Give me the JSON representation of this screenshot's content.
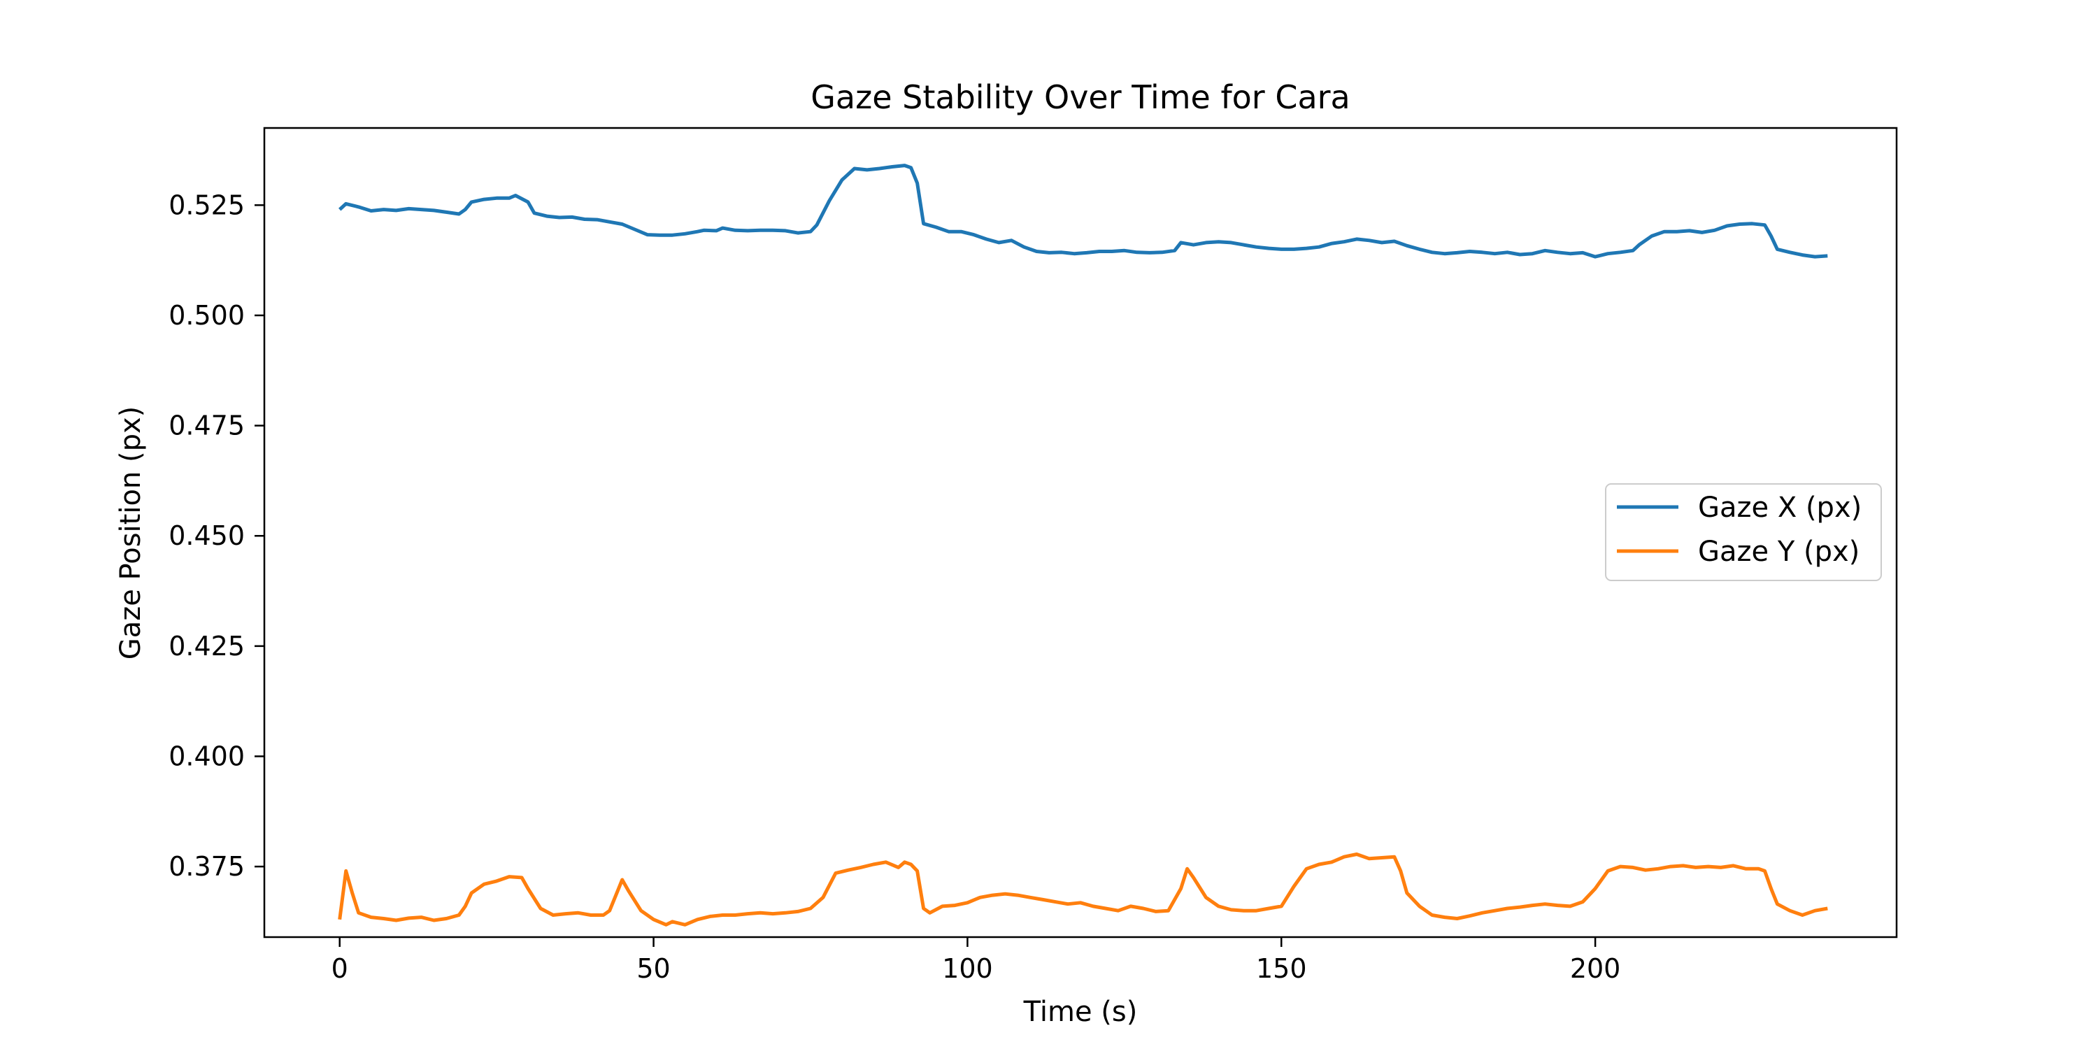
{
  "chart_data": {
    "type": "line",
    "title": "Gaze Stability Over Time for Cara",
    "xlabel": "Time (s)",
    "ylabel": "Gaze Position (px)",
    "xlim": [
      -12,
      248
    ],
    "ylim": [
      0.359,
      0.5425
    ],
    "xticks": [
      0,
      50,
      100,
      150,
      200
    ],
    "yticks": [
      0.375,
      0.4,
      0.425,
      0.45,
      0.475,
      0.5,
      0.525
    ],
    "ytick_labels": [
      "0.375",
      "0.400",
      "0.425",
      "0.450",
      "0.475",
      "0.500",
      "0.525"
    ],
    "grid": false,
    "legend_position": "center-right",
    "series": [
      {
        "name": "Gaze X (px)",
        "color": "#1f77b4",
        "points": [
          [
            0,
            0.524
          ],
          [
            1,
            0.5253
          ],
          [
            3,
            0.5246
          ],
          [
            5,
            0.5237
          ],
          [
            7,
            0.524
          ],
          [
            9,
            0.5238
          ],
          [
            11,
            0.5242
          ],
          [
            13,
            0.524
          ],
          [
            15,
            0.5238
          ],
          [
            17,
            0.5234
          ],
          [
            19,
            0.523
          ],
          [
            20,
            0.524
          ],
          [
            21,
            0.5257
          ],
          [
            23,
            0.5263
          ],
          [
            25,
            0.5266
          ],
          [
            27,
            0.5266
          ],
          [
            28,
            0.5272
          ],
          [
            30,
            0.5257
          ],
          [
            31,
            0.5232
          ],
          [
            33,
            0.5225
          ],
          [
            35,
            0.5222
          ],
          [
            37,
            0.5223
          ],
          [
            39,
            0.5218
          ],
          [
            41,
            0.5217
          ],
          [
            43,
            0.5212
          ],
          [
            45,
            0.5207
          ],
          [
            47,
            0.5195
          ],
          [
            49,
            0.5183
          ],
          [
            51,
            0.5182
          ],
          [
            53,
            0.5182
          ],
          [
            55,
            0.5185
          ],
          [
            57,
            0.519
          ],
          [
            58,
            0.5193
          ],
          [
            60,
            0.5192
          ],
          [
            61,
            0.5198
          ],
          [
            63,
            0.5193
          ],
          [
            65,
            0.5192
          ],
          [
            67,
            0.5193
          ],
          [
            69,
            0.5193
          ],
          [
            71,
            0.5192
          ],
          [
            73,
            0.5187
          ],
          [
            75,
            0.519
          ],
          [
            76,
            0.5205
          ],
          [
            78,
            0.526
          ],
          [
            80,
            0.5307
          ],
          [
            82,
            0.5333
          ],
          [
            84,
            0.533
          ],
          [
            86,
            0.5333
          ],
          [
            88,
            0.5337
          ],
          [
            90,
            0.534
          ],
          [
            91,
            0.5335
          ],
          [
            92,
            0.53
          ],
          [
            93,
            0.5208
          ],
          [
            95,
            0.52
          ],
          [
            97,
            0.519
          ],
          [
            99,
            0.519
          ],
          [
            101,
            0.5183
          ],
          [
            103,
            0.5173
          ],
          [
            105,
            0.5165
          ],
          [
            107,
            0.517
          ],
          [
            109,
            0.5155
          ],
          [
            111,
            0.5145
          ],
          [
            113,
            0.5142
          ],
          [
            115,
            0.5143
          ],
          [
            117,
            0.514
          ],
          [
            119,
            0.5142
          ],
          [
            121,
            0.5145
          ],
          [
            123,
            0.5145
          ],
          [
            125,
            0.5147
          ],
          [
            127,
            0.5143
          ],
          [
            129,
            0.5142
          ],
          [
            131,
            0.5143
          ],
          [
            133,
            0.5147
          ],
          [
            134,
            0.5165
          ],
          [
            136,
            0.516
          ],
          [
            138,
            0.5165
          ],
          [
            140,
            0.5167
          ],
          [
            142,
            0.5165
          ],
          [
            144,
            0.516
          ],
          [
            146,
            0.5155
          ],
          [
            148,
            0.5152
          ],
          [
            150,
            0.515
          ],
          [
            152,
            0.515
          ],
          [
            154,
            0.5152
          ],
          [
            156,
            0.5155
          ],
          [
            158,
            0.5163
          ],
          [
            160,
            0.5167
          ],
          [
            162,
            0.5173
          ],
          [
            164,
            0.517
          ],
          [
            166,
            0.5165
          ],
          [
            168,
            0.5168
          ],
          [
            170,
            0.5158
          ],
          [
            172,
            0.515
          ],
          [
            174,
            0.5143
          ],
          [
            176,
            0.514
          ],
          [
            178,
            0.5142
          ],
          [
            180,
            0.5145
          ],
          [
            182,
            0.5143
          ],
          [
            184,
            0.514
          ],
          [
            186,
            0.5143
          ],
          [
            188,
            0.5138
          ],
          [
            190,
            0.514
          ],
          [
            192,
            0.5147
          ],
          [
            194,
            0.5143
          ],
          [
            196,
            0.514
          ],
          [
            198,
            0.5142
          ],
          [
            200,
            0.5133
          ],
          [
            202,
            0.514
          ],
          [
            204,
            0.5143
          ],
          [
            206,
            0.5147
          ],
          [
            207,
            0.516
          ],
          [
            209,
            0.518
          ],
          [
            211,
            0.519
          ],
          [
            213,
            0.519
          ],
          [
            215,
            0.5192
          ],
          [
            217,
            0.5188
          ],
          [
            219,
            0.5193
          ],
          [
            221,
            0.5203
          ],
          [
            223,
            0.5207
          ],
          [
            225,
            0.5208
          ],
          [
            227,
            0.5205
          ],
          [
            228,
            0.518
          ],
          [
            229,
            0.515
          ],
          [
            231,
            0.5143
          ],
          [
            233,
            0.5137
          ],
          [
            235,
            0.5133
          ],
          [
            237,
            0.5135
          ]
        ]
      },
      {
        "name": "Gaze Y (px)",
        "color": "#ff7f0e",
        "points": [
          [
            0,
            0.363
          ],
          [
            1,
            0.374
          ],
          [
            2,
            0.369
          ],
          [
            3,
            0.3645
          ],
          [
            5,
            0.3635
          ],
          [
            7,
            0.3632
          ],
          [
            9,
            0.3628
          ],
          [
            11,
            0.3633
          ],
          [
            13,
            0.3635
          ],
          [
            15,
            0.3628
          ],
          [
            17,
            0.3632
          ],
          [
            19,
            0.364
          ],
          [
            20,
            0.366
          ],
          [
            21,
            0.369
          ],
          [
            23,
            0.371
          ],
          [
            25,
            0.3717
          ],
          [
            27,
            0.3727
          ],
          [
            29,
            0.3725
          ],
          [
            30,
            0.37
          ],
          [
            32,
            0.3655
          ],
          [
            34,
            0.364
          ],
          [
            36,
            0.3643
          ],
          [
            38,
            0.3645
          ],
          [
            40,
            0.364
          ],
          [
            42,
            0.364
          ],
          [
            43,
            0.365
          ],
          [
            45,
            0.372
          ],
          [
            46,
            0.3695
          ],
          [
            48,
            0.365
          ],
          [
            50,
            0.363
          ],
          [
            52,
            0.3618
          ],
          [
            53,
            0.3625
          ],
          [
            55,
            0.3618
          ],
          [
            57,
            0.363
          ],
          [
            59,
            0.3637
          ],
          [
            61,
            0.364
          ],
          [
            63,
            0.364
          ],
          [
            65,
            0.3643
          ],
          [
            67,
            0.3645
          ],
          [
            69,
            0.3643
          ],
          [
            71,
            0.3645
          ],
          [
            73,
            0.3648
          ],
          [
            75,
            0.3655
          ],
          [
            77,
            0.368
          ],
          [
            79,
            0.3735
          ],
          [
            81,
            0.3742
          ],
          [
            83,
            0.3748
          ],
          [
            85,
            0.3755
          ],
          [
            87,
            0.376
          ],
          [
            89,
            0.3748
          ],
          [
            90,
            0.376
          ],
          [
            91,
            0.3755
          ],
          [
            92,
            0.374
          ],
          [
            93,
            0.3655
          ],
          [
            94,
            0.3645
          ],
          [
            96,
            0.366
          ],
          [
            98,
            0.3662
          ],
          [
            100,
            0.3668
          ],
          [
            102,
            0.368
          ],
          [
            104,
            0.3685
          ],
          [
            106,
            0.3688
          ],
          [
            108,
            0.3685
          ],
          [
            110,
            0.368
          ],
          [
            112,
            0.3675
          ],
          [
            114,
            0.367
          ],
          [
            116,
            0.3665
          ],
          [
            118,
            0.3668
          ],
          [
            120,
            0.366
          ],
          [
            122,
            0.3655
          ],
          [
            124,
            0.365
          ],
          [
            126,
            0.366
          ],
          [
            128,
            0.3655
          ],
          [
            130,
            0.3648
          ],
          [
            132,
            0.365
          ],
          [
            134,
            0.37
          ],
          [
            135,
            0.3745
          ],
          [
            136,
            0.3725
          ],
          [
            138,
            0.368
          ],
          [
            140,
            0.366
          ],
          [
            142,
            0.3652
          ],
          [
            144,
            0.365
          ],
          [
            146,
            0.365
          ],
          [
            148,
            0.3655
          ],
          [
            150,
            0.366
          ],
          [
            152,
            0.3705
          ],
          [
            154,
            0.3745
          ],
          [
            156,
            0.3755
          ],
          [
            158,
            0.376
          ],
          [
            160,
            0.3772
          ],
          [
            162,
            0.3778
          ],
          [
            164,
            0.3768
          ],
          [
            166,
            0.377
          ],
          [
            168,
            0.3772
          ],
          [
            169,
            0.374
          ],
          [
            170,
            0.369
          ],
          [
            172,
            0.366
          ],
          [
            174,
            0.364
          ],
          [
            176,
            0.3635
          ],
          [
            178,
            0.3632
          ],
          [
            180,
            0.3638
          ],
          [
            182,
            0.3645
          ],
          [
            184,
            0.365
          ],
          [
            186,
            0.3655
          ],
          [
            188,
            0.3658
          ],
          [
            190,
            0.3662
          ],
          [
            192,
            0.3665
          ],
          [
            194,
            0.3662
          ],
          [
            196,
            0.366
          ],
          [
            198,
            0.367
          ],
          [
            200,
            0.37
          ],
          [
            202,
            0.374
          ],
          [
            204,
            0.375
          ],
          [
            206,
            0.3748
          ],
          [
            208,
            0.3742
          ],
          [
            210,
            0.3745
          ],
          [
            212,
            0.375
          ],
          [
            214,
            0.3752
          ],
          [
            216,
            0.3748
          ],
          [
            218,
            0.375
          ],
          [
            220,
            0.3748
          ],
          [
            222,
            0.3752
          ],
          [
            224,
            0.3745
          ],
          [
            226,
            0.3745
          ],
          [
            227,
            0.374
          ],
          [
            228,
            0.37
          ],
          [
            229,
            0.3665
          ],
          [
            231,
            0.365
          ],
          [
            233,
            0.364
          ],
          [
            235,
            0.365
          ],
          [
            237,
            0.3655
          ]
        ]
      }
    ]
  }
}
